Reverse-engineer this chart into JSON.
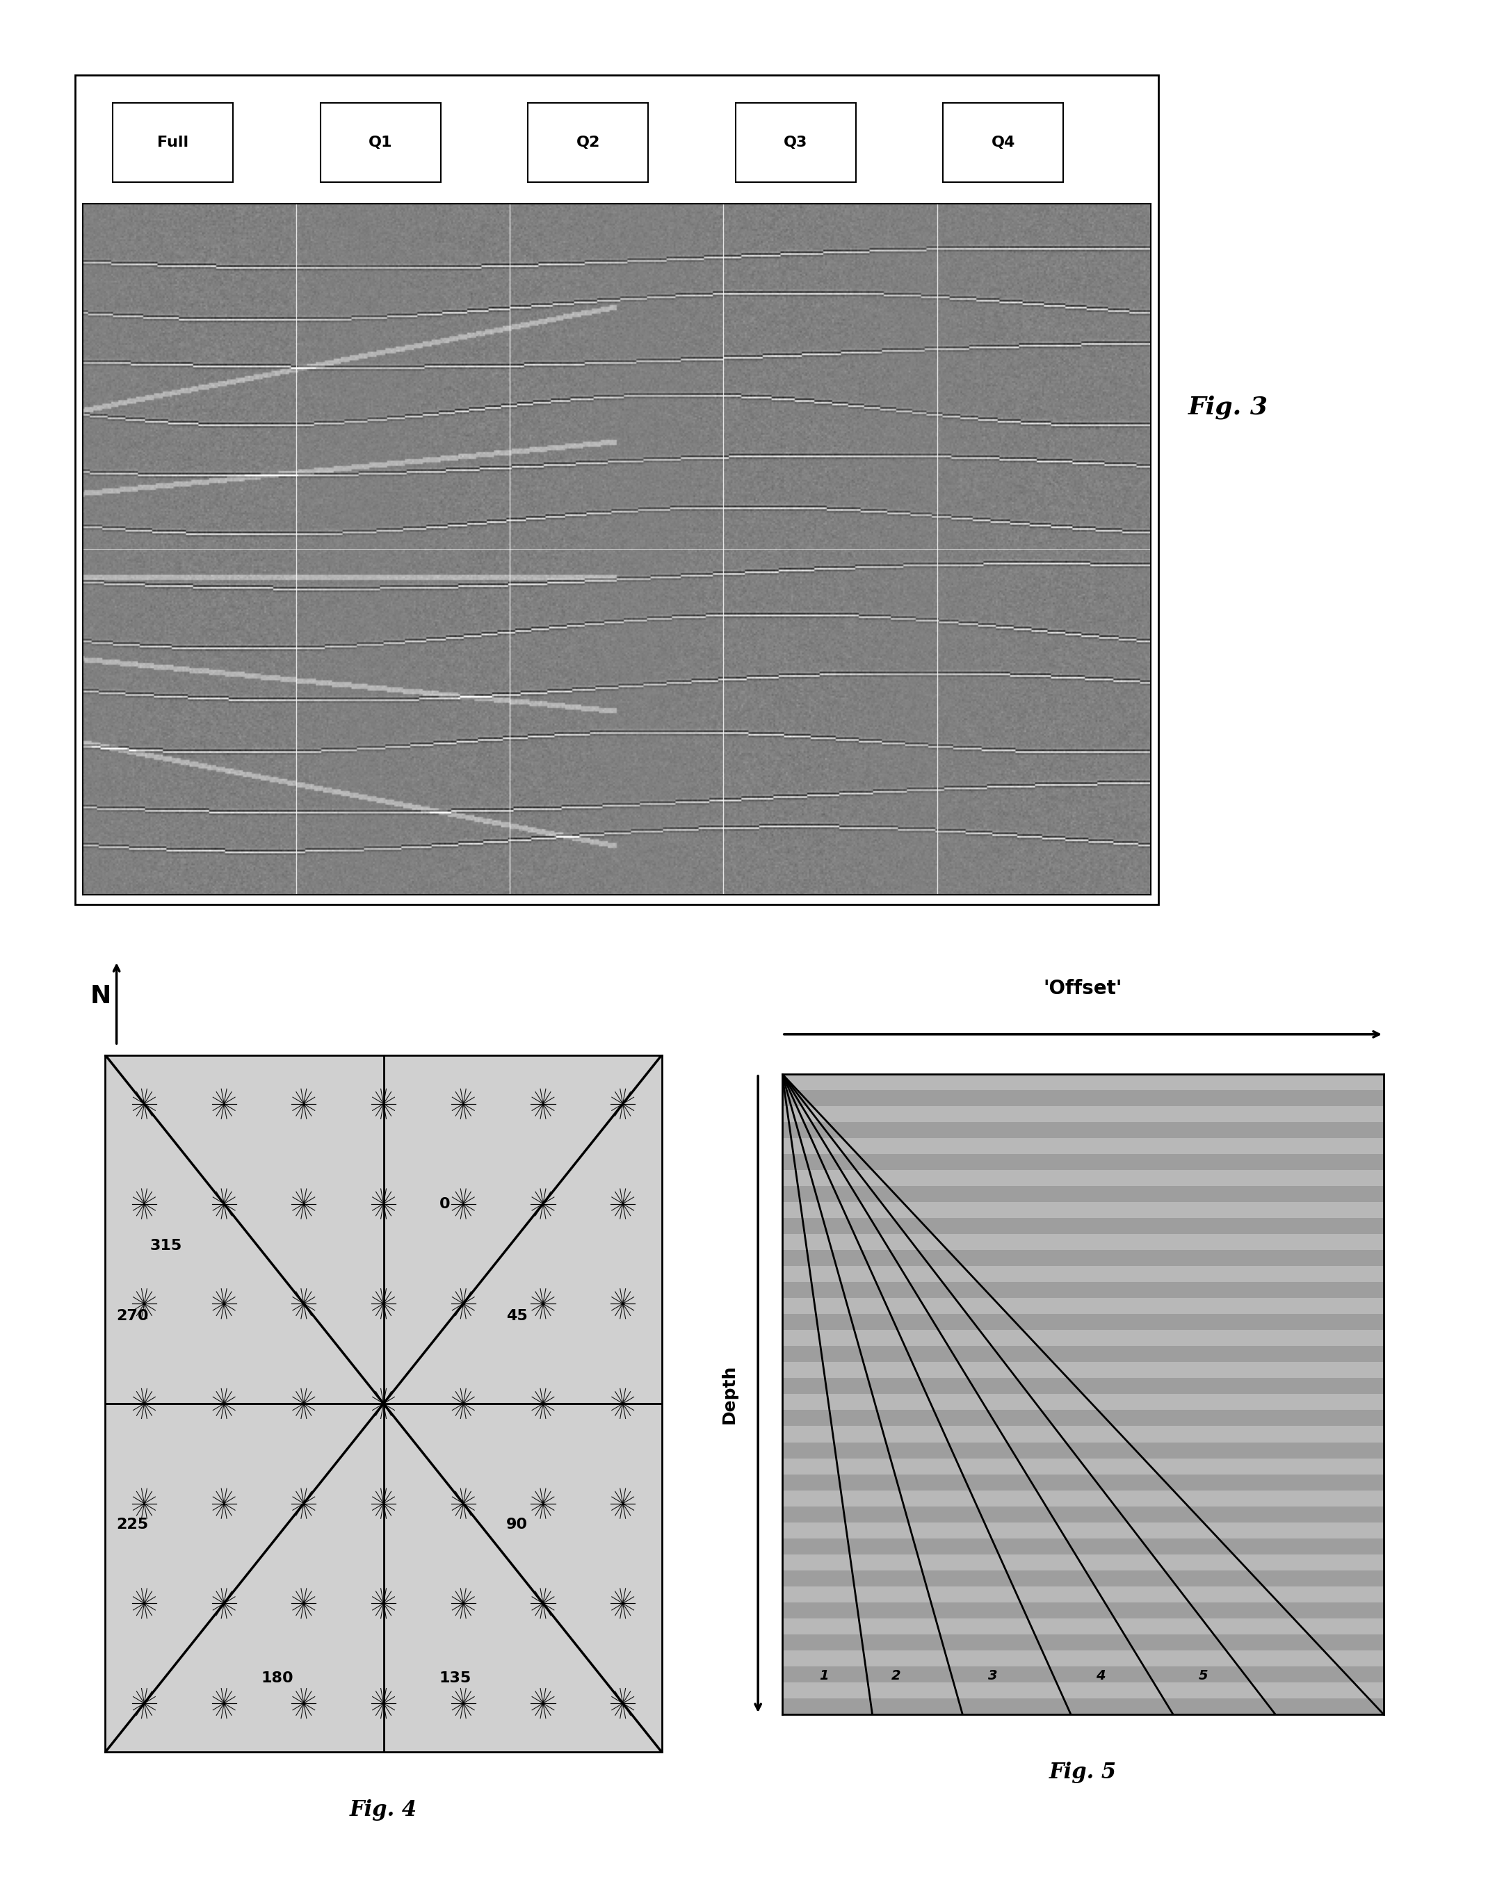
{
  "fig3_title": "Fig. 3",
  "fig3_labels": [
    "Full",
    "Q1",
    "Q2",
    "Q3",
    "Q4"
  ],
  "fig4_title": "Fig. 4",
  "fig4_labels": [
    "315",
    "0",
    "45",
    "90",
    "135",
    "180",
    "225",
    "270"
  ],
  "fig5_title": "Fig. 5",
  "fig5_offset_label": "'Offset'",
  "fig5_depth_label": "Depth",
  "fig5_numbers": [
    "1",
    "2",
    "3",
    "4",
    "5"
  ],
  "north_label": "N",
  "background_color": "#ffffff",
  "fig4_bg_color": "#e8e8e8",
  "fig5_bg_color": "#b8b8b8",
  "fig5_stripe_light": "#c8c8c8",
  "fig5_stripe_dark": "#a8a8a8"
}
